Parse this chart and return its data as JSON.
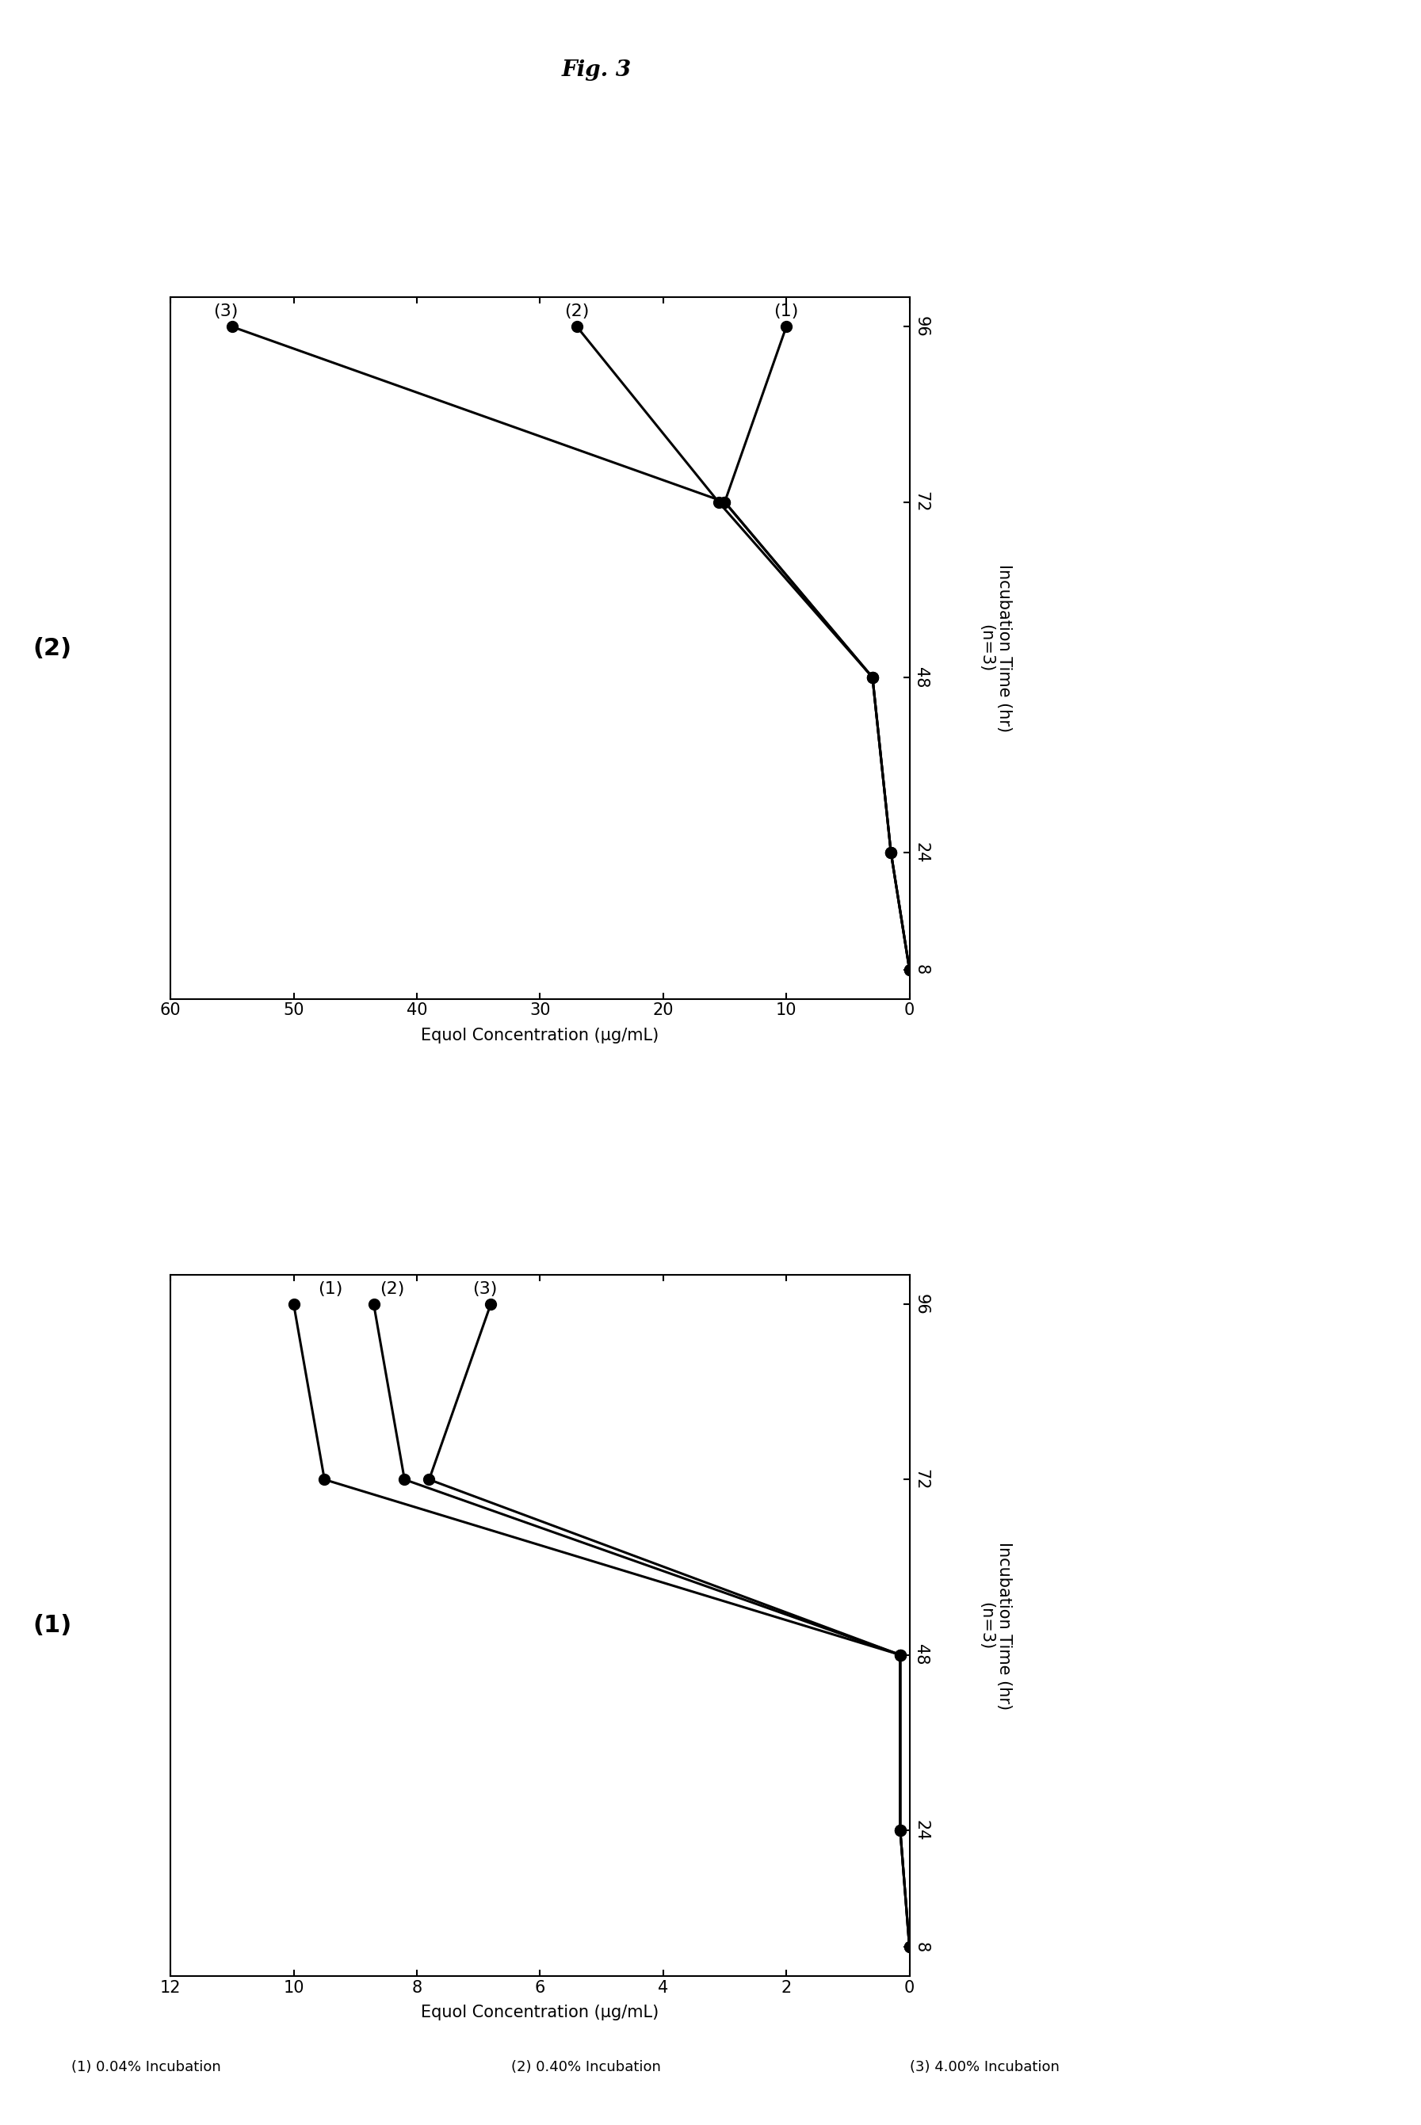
{
  "title": "Fig. 3",
  "bg": "#ffffff",
  "p1_label": "(1)",
  "p1_xlabel": "Equol Concentration (μg/mL)",
  "p1_ylabel": "Incubation Time (hr)",
  "p1_n": "(n=3)",
  "p1_conc_max": 12,
  "p1_conc_ticks": [
    0,
    2,
    4,
    6,
    8,
    10,
    12
  ],
  "p1_time_ticks": [
    8,
    24,
    48,
    72,
    96
  ],
  "p1_s1_conc": [
    0.0,
    0.15,
    0.15,
    9.5,
    10.0
  ],
  "p1_s2_conc": [
    0.0,
    0.15,
    0.15,
    8.2,
    8.7
  ],
  "p1_s3_conc": [
    0.0,
    0.15,
    0.15,
    7.8,
    6.8
  ],
  "p1_times": [
    8,
    24,
    48,
    72,
    96
  ],
  "p2_label": "(2)",
  "p2_xlabel": "Equol Concentration (μg/mL)",
  "p2_ylabel": "Incubation Time (hr)",
  "p2_n": "(n=3)",
  "p2_conc_max": 60,
  "p2_conc_ticks": [
    0,
    10,
    20,
    30,
    40,
    50,
    60
  ],
  "p2_time_ticks": [
    8,
    24,
    48,
    72,
    96
  ],
  "p2_s1_conc": [
    0.0,
    1.5,
    3.0,
    15.0,
    10.0
  ],
  "p2_s2_conc": [
    0.0,
    1.5,
    3.0,
    15.5,
    27.0
  ],
  "p2_s3_conc": [
    0.0,
    1.5,
    3.0,
    15.0,
    55.0
  ],
  "p2_times": [
    8,
    24,
    48,
    72,
    96
  ],
  "legend": [
    "(1) 0.04% Incubation",
    "(2) 0.40% Incubation",
    "(3) 4.00% Incubation"
  ],
  "marker_size": 10,
  "line_width": 2.2,
  "label_fontsize": 16,
  "tick_fontsize": 15,
  "axis_label_fontsize": 15,
  "panel_label_fontsize": 22,
  "title_fontsize": 20,
  "legend_fontsize": 13
}
